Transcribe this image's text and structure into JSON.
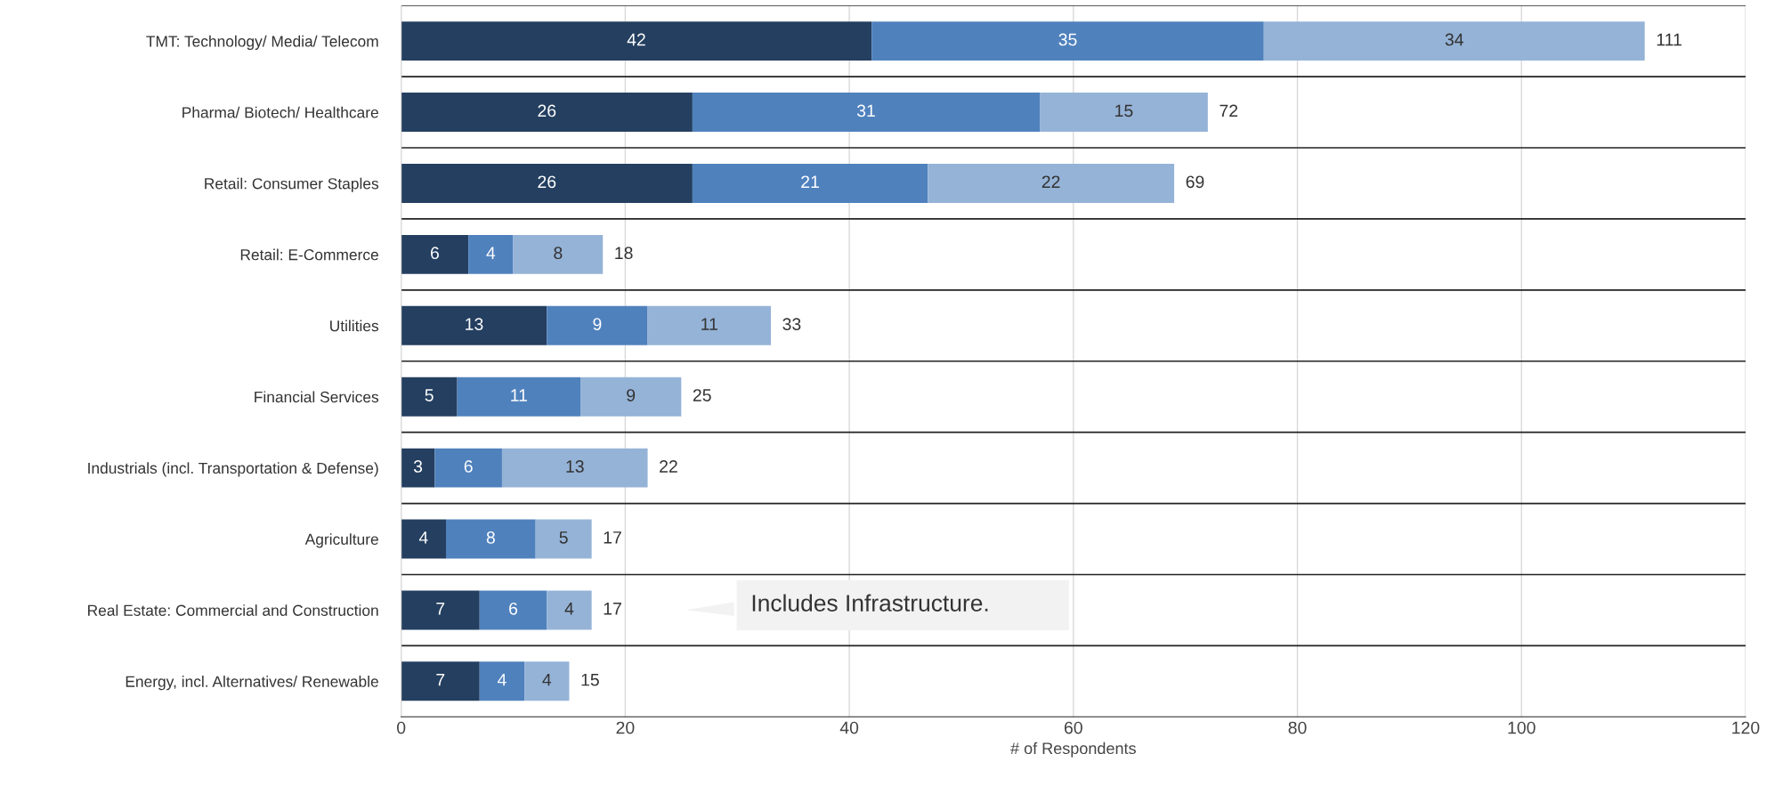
{
  "chart_data": {
    "type": "bar",
    "orientation": "horizontal",
    "stacked": true,
    "data_labels": true,
    "grid": "x",
    "xlabel": "# of Respondents",
    "categories": [
      "TMT: Technology/ Media/ Telecom",
      "Pharma/ Biotech/ Healthcare",
      "Retail: Consumer Staples",
      "Retail: E-Commerce",
      "Utilities",
      "Financial Services",
      "Industrials (incl. Transportation & Defense)",
      "Agriculture",
      "Real Estate: Commercial and Construction",
      "Energy, incl. Alternatives/ Renewable"
    ],
    "series": [
      {
        "color": "#243f60",
        "values": [
          42,
          26,
          26,
          6,
          13,
          5,
          3,
          4,
          7,
          7
        ]
      },
      {
        "color": "#4f81bd",
        "values": [
          35,
          31,
          21,
          4,
          9,
          11,
          6,
          8,
          6,
          4
        ]
      },
      {
        "color": "#95b3d7",
        "values": [
          34,
          15,
          22,
          8,
          11,
          9,
          13,
          5,
          4,
          4
        ]
      }
    ],
    "totals": [
      "111",
      "72",
      "69",
      "18",
      "33",
      "25",
      "22",
      "17",
      "17",
      "15"
    ],
    "xlim": [
      0,
      120
    ],
    "xticks": [
      0,
      20,
      40,
      60,
      80,
      100,
      120
    ],
    "annotations": [
      "Includes Infrastructure."
    ]
  }
}
